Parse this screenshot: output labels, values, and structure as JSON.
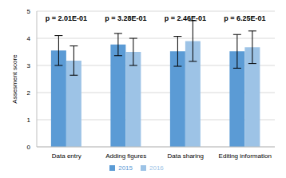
{
  "chart_data": {
    "type": "bar",
    "categories": [
      "Data entry",
      "Adding figures",
      "Data sharing",
      "Editing information"
    ],
    "series": [
      {
        "name": "2015",
        "color": "#5b9bd5",
        "values": [
          3.55,
          3.77,
          3.52,
          3.52
        ],
        "errors": [
          0.55,
          0.41,
          0.55,
          0.62
        ]
      },
      {
        "name": "2016",
        "color": "#9dc3e6",
        "values": [
          3.18,
          3.5,
          3.9,
          3.67
        ],
        "errors": [
          0.54,
          0.5,
          0.75,
          0.6
        ]
      }
    ],
    "ylabel": "Assesment score",
    "ylim": [
      0,
      5
    ],
    "yticks": [
      0,
      1,
      2,
      3,
      4,
      5
    ],
    "grid": true,
    "legend": "bottom",
    "annotations": [
      "p = 2.01E-01",
      "p = 3.28E-01",
      "p = 2.46E-01",
      "p = 6.25E-01"
    ]
  }
}
